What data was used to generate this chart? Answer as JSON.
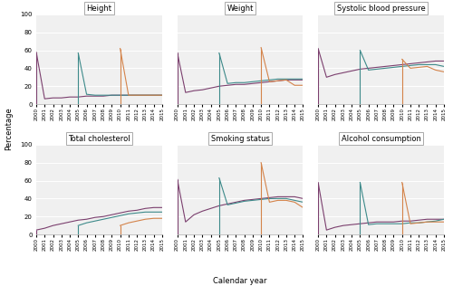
{
  "years": [
    2000,
    2001,
    2002,
    2003,
    2004,
    2005,
    2006,
    2007,
    2008,
    2009,
    2010,
    2011,
    2012,
    2013,
    2014,
    2015
  ],
  "colors": {
    "c2000": "#7b3f6e",
    "c2005": "#3d8a8a",
    "c2010": "#d4834a"
  },
  "panels": {
    "Height": {
      "c2000": [
        58,
        6,
        7,
        7,
        8,
        8,
        9,
        9,
        9,
        10,
        10,
        10,
        10,
        10,
        10,
        10
      ],
      "c2005": [
        null,
        null,
        null,
        null,
        null,
        57,
        11,
        10,
        10,
        10,
        10,
        10,
        10,
        10,
        10,
        10
      ],
      "c2010": [
        null,
        null,
        null,
        null,
        null,
        null,
        null,
        null,
        null,
        null,
        62,
        10,
        10,
        10,
        10,
        10
      ]
    },
    "Weight": {
      "c2000": [
        58,
        13,
        15,
        16,
        18,
        20,
        21,
        22,
        22,
        23,
        24,
        25,
        26,
        27,
        27,
        27
      ],
      "c2005": [
        null,
        null,
        null,
        null,
        null,
        57,
        23,
        24,
        24,
        25,
        26,
        27,
        28,
        28,
        28,
        28
      ],
      "c2010": [
        null,
        null,
        null,
        null,
        null,
        null,
        null,
        null,
        null,
        null,
        63,
        25,
        26,
        27,
        21,
        21
      ]
    },
    "Systolic blood pressure": {
      "c2000": [
        62,
        30,
        33,
        35,
        37,
        39,
        40,
        41,
        42,
        43,
        44,
        45,
        46,
        47,
        48,
        48
      ],
      "c2005": [
        null,
        null,
        null,
        null,
        null,
        60,
        38,
        39,
        40,
        41,
        42,
        43,
        44,
        44,
        44,
        42
      ],
      "c2010": [
        null,
        null,
        null,
        null,
        null,
        null,
        null,
        null,
        null,
        null,
        50,
        40,
        41,
        42,
        38,
        36
      ]
    },
    "Total cholesterol": {
      "c2000": [
        5,
        7,
        10,
        12,
        14,
        16,
        17,
        19,
        20,
        22,
        24,
        26,
        27,
        29,
        30,
        30
      ],
      "c2005": [
        null,
        null,
        null,
        null,
        null,
        10,
        13,
        15,
        17,
        19,
        21,
        23,
        24,
        25,
        25,
        25
      ],
      "c2010": [
        null,
        null,
        null,
        null,
        null,
        null,
        null,
        null,
        null,
        null,
        10,
        13,
        15,
        17,
        18,
        18
      ]
    },
    "Smoking status": {
      "c2000": [
        62,
        14,
        22,
        26,
        29,
        32,
        34,
        36,
        38,
        39,
        40,
        41,
        42,
        42,
        42,
        40
      ],
      "c2005": [
        null,
        null,
        null,
        null,
        null,
        63,
        33,
        35,
        37,
        38,
        39,
        40,
        40,
        40,
        38,
        36
      ],
      "c2010": [
        null,
        null,
        null,
        null,
        null,
        null,
        null,
        null,
        null,
        null,
        80,
        36,
        38,
        38,
        36,
        30
      ]
    },
    "Alcohol consumption": {
      "c2000": [
        58,
        5,
        8,
        10,
        11,
        12,
        13,
        14,
        14,
        14,
        15,
        15,
        16,
        17,
        17,
        17
      ],
      "c2005": [
        null,
        null,
        null,
        null,
        null,
        58,
        11,
        12,
        12,
        12,
        12,
        13,
        13,
        14,
        15,
        17
      ],
      "c2010": [
        null,
        null,
        null,
        null,
        null,
        null,
        null,
        null,
        null,
        null,
        58,
        12,
        13,
        14,
        14,
        14
      ]
    }
  },
  "panel_order": [
    "Height",
    "Weight",
    "Systolic blood pressure",
    "Total cholesterol",
    "Smoking status",
    "Alcohol consumption"
  ],
  "xlabel": "Calendar year",
  "ylabel": "Percentage",
  "ylim": [
    0,
    100
  ],
  "yticks": [
    0,
    20,
    40,
    60,
    80,
    100
  ],
  "background_color": "#f0f0f0"
}
